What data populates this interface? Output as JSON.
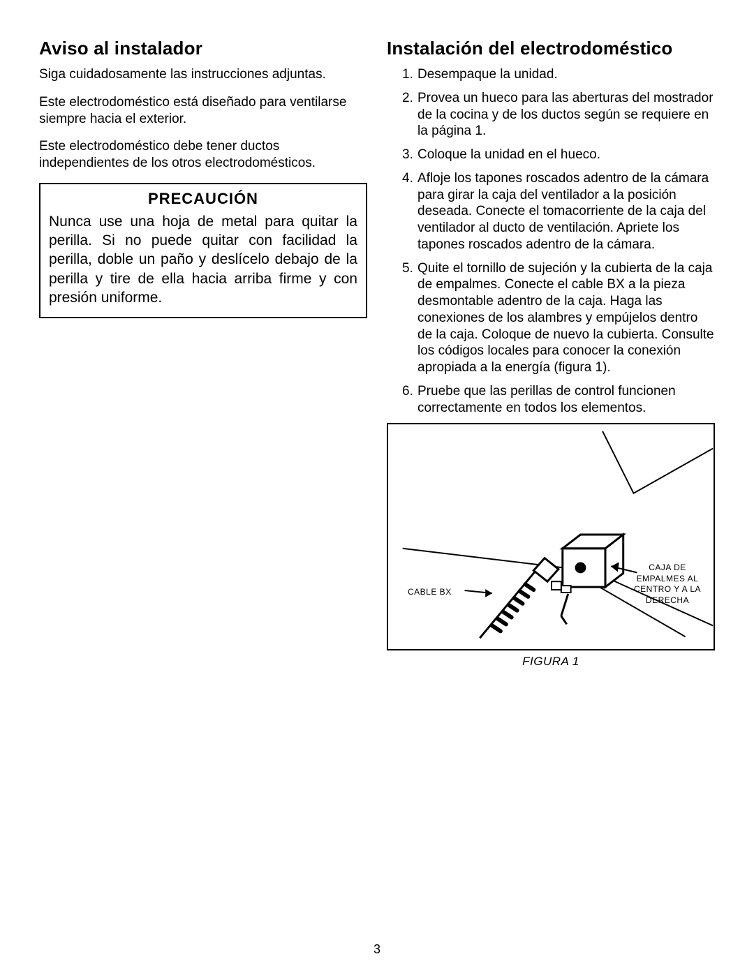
{
  "page_number": "3",
  "left": {
    "heading": "Aviso al instalador",
    "p1": "Siga cuidadosamente las instrucciones adjuntas.",
    "p2": "Este electrodoméstico está diseñado para ventilarse siempre hacia el exterior.",
    "p3": "Este electrodoméstico debe tener ductos independientes de los otros electrodomésticos.",
    "caution_title": "PRECAUCIÓN",
    "caution_body": "Nunca use una hoja de metal para quitar la perilla. Si no puede quitar con facilidad la perilla, doble un paño y deslícelo debajo de la perilla y tire de ella hacia arriba firme y con presión uniforme."
  },
  "right": {
    "heading": "Instalación del electrodoméstico",
    "steps": [
      "Desempaque la unidad.",
      "Provea un hueco para las aberturas del mostrador de la cocina y de los ductos según se requiere en la página 1.",
      "Coloque la unidad en el hueco.",
      "Afloje los tapones roscados adentro de la cámara para girar la caja del ventilador a la posición deseada. Conecte el tomacorriente de la caja del ventilador al ducto de ventilación. Apriete los tapones roscados adentro de la cámara.",
      "Quite el tornillo de sujeción y la cubierta de la caja de empalmes. Conecte el cable BX a la pieza desmontable adentro de la caja. Haga las conexiones de los alambres y empújelos dentro de la caja. Coloque de nuevo la cubierta. Consulte los códigos locales para conocer la conexión apropiada a la energía (figura 1).",
      "Pruebe que las perillas de control funcionen correctamente en todos los elementos."
    ],
    "figure": {
      "caption": "FIGURA 1",
      "label_left": "CABLE BX",
      "label_right": "CAJA DE\nEMPALMES AL\nCENTRO Y A LA\nDERECHA",
      "stroke": "#000000",
      "fill": "#ffffff",
      "linewidth_thin": 2,
      "linewidth_thick": 3
    }
  }
}
